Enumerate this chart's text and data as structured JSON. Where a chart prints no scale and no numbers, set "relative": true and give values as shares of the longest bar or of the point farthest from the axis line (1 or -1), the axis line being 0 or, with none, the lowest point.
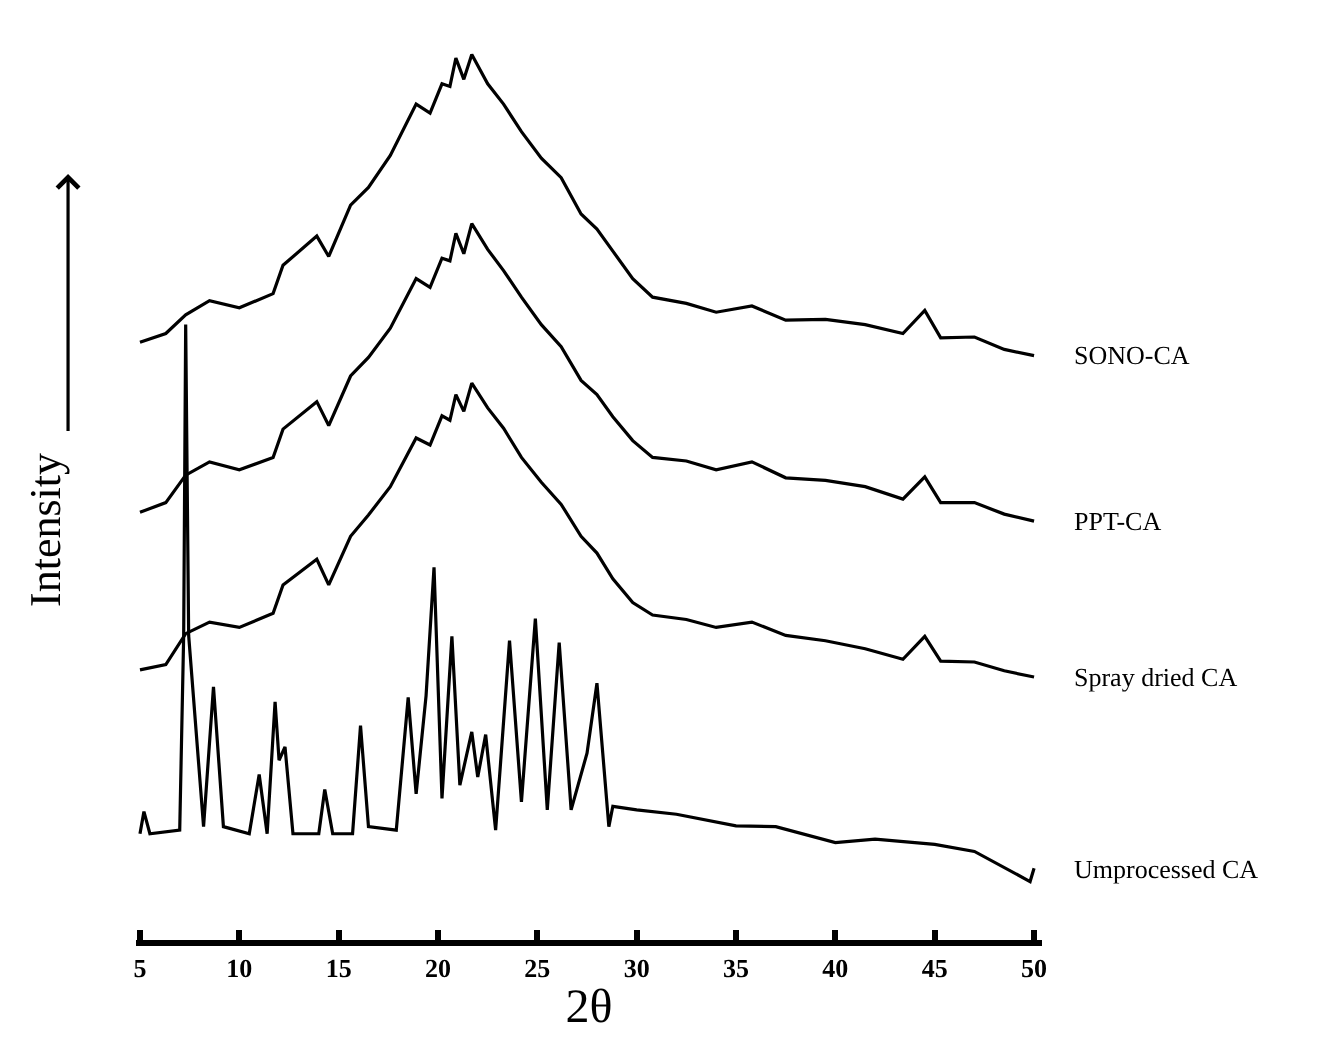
{
  "chart_data": {
    "type": "line",
    "xlabel": "2θ",
    "ylabel": "Intensity",
    "relative": true,
    "legend": false,
    "xlim": [
      4.8,
      50.4
    ],
    "xticks": [
      5,
      10,
      15,
      20,
      25,
      30,
      35,
      40,
      45,
      50
    ],
    "series": [
      {
        "name": "SONO-CA",
        "color": "#000000",
        "x": [
          5.0,
          6.3,
          7.3,
          8.5,
          10,
          11.7,
          12.2,
          13.9,
          14.5,
          15.6,
          16.5,
          17.6,
          18.9,
          19.6,
          20.2,
          20.6,
          20.9,
          21.3,
          21.7,
          22.5,
          23.3,
          24.2,
          25.2,
          26.2,
          27.2,
          28.0,
          28.8,
          29.8,
          30.8,
          32.5,
          34,
          35.8,
          37.5,
          39.5,
          41.5,
          43.4,
          44.5,
          45.3,
          47,
          48.5,
          50
        ],
        "values": [
          0.675,
          0.685,
          0.706,
          0.722,
          0.714,
          0.73,
          0.762,
          0.795,
          0.772,
          0.83,
          0.85,
          0.886,
          0.944,
          0.934,
          0.967,
          0.964,
          0.996,
          0.972,
          1.0,
          0.967,
          0.944,
          0.913,
          0.883,
          0.861,
          0.82,
          0.803,
          0.778,
          0.747,
          0.726,
          0.719,
          0.709,
          0.716,
          0.7,
          0.701,
          0.695,
          0.685,
          0.711,
          0.68,
          0.681,
          0.667,
          0.66
        ]
      },
      {
        "name": "PPT-CA",
        "color": "#000000",
        "x": [
          5.0,
          6.3,
          7.3,
          8.5,
          10,
          11.7,
          12.2,
          13.9,
          14.5,
          15.6,
          16.5,
          17.6,
          18.9,
          19.6,
          20.2,
          20.6,
          20.9,
          21.3,
          21.7,
          22.5,
          23.3,
          24.2,
          25.2,
          26.2,
          27.2,
          28.0,
          28.8,
          29.8,
          30.8,
          32.5,
          34,
          35.8,
          37.5,
          39.5,
          41.5,
          43.4,
          44.5,
          45.3,
          47,
          48.5,
          50
        ],
        "values": [
          0.483,
          0.494,
          0.525,
          0.54,
          0.531,
          0.545,
          0.577,
          0.608,
          0.581,
          0.637,
          0.658,
          0.691,
          0.747,
          0.737,
          0.77,
          0.767,
          0.798,
          0.775,
          0.809,
          0.78,
          0.756,
          0.726,
          0.695,
          0.67,
          0.632,
          0.616,
          0.591,
          0.564,
          0.545,
          0.541,
          0.531,
          0.54,
          0.522,
          0.519,
          0.512,
          0.498,
          0.523,
          0.494,
          0.494,
          0.481,
          0.473
        ]
      },
      {
        "name": "Spray dried CA",
        "color": "#000000",
        "x": [
          5.0,
          6.3,
          7.3,
          8.5,
          10,
          11.7,
          12.2,
          13.9,
          14.5,
          15.6,
          16.5,
          17.6,
          18.9,
          19.6,
          20.2,
          20.6,
          20.9,
          21.3,
          21.7,
          22.5,
          23.3,
          24.2,
          25.2,
          26.2,
          27.2,
          28.0,
          28.8,
          29.8,
          30.8,
          32.5,
          34,
          35.8,
          37.5,
          39.5,
          41.5,
          43.4,
          44.5,
          45.3,
          47,
          48.5,
          50
        ],
        "values": [
          0.305,
          0.311,
          0.346,
          0.359,
          0.353,
          0.369,
          0.401,
          0.43,
          0.401,
          0.456,
          0.48,
          0.512,
          0.567,
          0.559,
          0.592,
          0.587,
          0.616,
          0.597,
          0.629,
          0.601,
          0.578,
          0.545,
          0.517,
          0.492,
          0.456,
          0.437,
          0.408,
          0.381,
          0.367,
          0.362,
          0.353,
          0.359,
          0.344,
          0.338,
          0.329,
          0.317,
          0.343,
          0.315,
          0.314,
          0.304,
          0.297
        ]
      },
      {
        "name": "Umprocessed CA",
        "color": "#000000",
        "x": [
          5.0,
          5.2,
          5.5,
          7.0,
          7.2,
          7.3,
          7.45,
          8.2,
          8.7,
          9.2,
          10.5,
          11.0,
          11.4,
          11.8,
          12.0,
          12.3,
          12.7,
          14.0,
          14.3,
          14.7,
          15.7,
          16.1,
          16.5,
          17.9,
          18.5,
          18.9,
          19.4,
          19.8,
          20.2,
          20.7,
          21.1,
          21.7,
          22.0,
          22.4,
          22.9,
          23.6,
          24.2,
          24.9,
          25.5,
          26.1,
          26.7,
          27.5,
          28.0,
          28.6,
          28.8,
          30,
          32,
          35,
          37,
          40,
          42,
          45,
          47,
          49.8,
          50
        ],
        "values": [
          0.12,
          0.145,
          0.12,
          0.124,
          0.344,
          0.695,
          0.344,
          0.128,
          0.286,
          0.128,
          0.12,
          0.187,
          0.12,
          0.269,
          0.203,
          0.218,
          0.12,
          0.12,
          0.17,
          0.12,
          0.12,
          0.242,
          0.128,
          0.124,
          0.274,
          0.165,
          0.276,
          0.421,
          0.16,
          0.343,
          0.175,
          0.235,
          0.184,
          0.232,
          0.124,
          0.338,
          0.156,
          0.363,
          0.147,
          0.336,
          0.147,
          0.211,
          0.29,
          0.128,
          0.151,
          0.147,
          0.142,
          0.129,
          0.128,
          0.11,
          0.114,
          0.108,
          0.1,
          0.066,
          0.081
        ]
      }
    ]
  }
}
